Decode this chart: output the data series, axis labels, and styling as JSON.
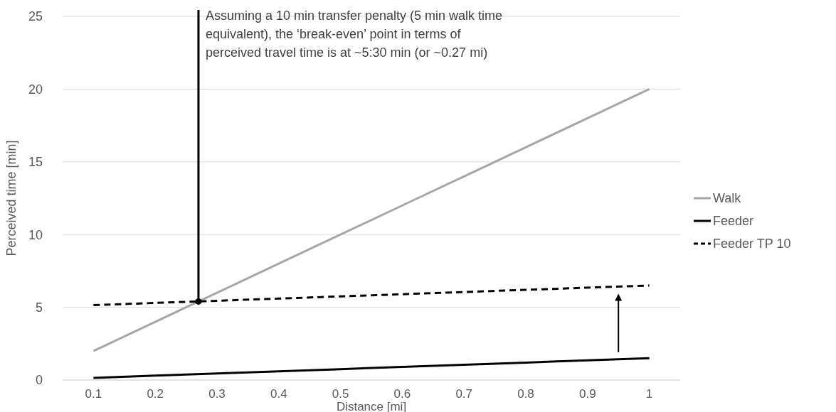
{
  "chart_data": {
    "type": "line",
    "xlabel": "Distance [mi]",
    "ylabel": "Perceived time [min]",
    "x": [
      0.1,
      0.2,
      0.3,
      0.4,
      0.5,
      0.6,
      0.7,
      0.8,
      0.9,
      1
    ],
    "xlim": [
      0.05,
      1.05
    ],
    "xticks": [
      0.1,
      0.2,
      0.3,
      0.4,
      0.5,
      0.6,
      0.7,
      0.8,
      0.9,
      1
    ],
    "ylim": [
      0,
      25
    ],
    "yticks": [
      0,
      5,
      10,
      15,
      20,
      25
    ],
    "grid": "y",
    "legend": "right",
    "series": [
      {
        "name": "Walk",
        "color": "#a6a6a6",
        "line_style": "solid",
        "values": [
          2,
          4,
          6,
          8,
          10,
          12,
          14,
          16,
          18,
          20
        ]
      },
      {
        "name": "Feeder",
        "color": "#000000",
        "line_style": "solid",
        "values": [
          0.15,
          0.3,
          0.45,
          0.6,
          0.75,
          0.9,
          1.05,
          1.2,
          1.35,
          1.5
        ]
      },
      {
        "name": "Feeder TP 10",
        "color": "#000000",
        "line_style": "dashed",
        "values": [
          5.15,
          5.3,
          5.45,
          5.6,
          5.75,
          5.9,
          6.05,
          6.2,
          6.35,
          6.5
        ]
      }
    ],
    "annotations": [
      {
        "text": "Assuming a 10 min transfer penalty (5 min walk time equivalent), the ‘break-even’ point in terms of perceived travel time is at ~5:30 min (or ~0.27 mi)",
        "x": 0.27,
        "y": 5.4
      }
    ]
  }
}
